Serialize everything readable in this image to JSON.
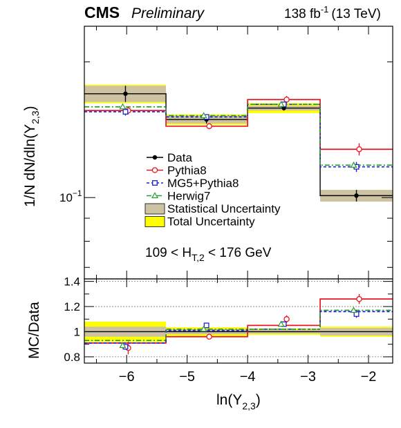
{
  "header": {
    "experiment": "CMS",
    "status": "Preliminary",
    "lumi_value": "138 fb",
    "lumi_exp": "-1",
    "lumi_energy": "(13 TeV)"
  },
  "colors": {
    "data": "#000000",
    "pythia8": "#e8141e",
    "mg5": "#1f1fd8",
    "herwig7": "#2a9a2a",
    "stat_band": "#cdc3a3",
    "total_band": "#ffff00"
  },
  "chart_data": [
    {
      "type": "line",
      "panel": "main",
      "ylabel_main": "1/N dN/dln(Y",
      "ylabel_sub": "2,3",
      "ylabel_close": ")",
      "yscale": "log",
      "xlim": [
        -6.7,
        -1.6
      ],
      "ylim": [
        0.066,
        0.24
      ],
      "ytick_base": "10",
      "ytick_exp": "−1",
      "ytick_value": 0.1,
      "annotation": {
        "main": "109 < H",
        "sub": "T,2",
        "tail": " < 176 GeV"
      },
      "bin_edges": [
        -6.7,
        -5.35,
        -4.0,
        -2.8,
        -1.6
      ],
      "bin_centers": [
        -6.02,
        -4.68,
        -3.4,
        -2.2
      ],
      "legend_position": "center",
      "legend": [
        {
          "key": "data",
          "label": "Data"
        },
        {
          "key": "pythia8",
          "label": "Pythia8"
        },
        {
          "key": "mg5",
          "label": "MG5+Pythia8"
        },
        {
          "key": "herwig7",
          "label": "Herwig7"
        },
        {
          "key": "stat",
          "label": "Statistical Uncertainty"
        },
        {
          "key": "total",
          "label": "Total Uncertainty"
        }
      ],
      "series": [
        {
          "key": "data",
          "name": "Data",
          "values": [
            0.17,
            0.149,
            0.158,
            0.101
          ],
          "errors": [
            0.007,
            0.003,
            0.002,
            0.003
          ],
          "total_errors": [
            0.008,
            0.004,
            0.004,
            0.003
          ]
        },
        {
          "key": "pythia8",
          "name": "Pythia8",
          "values": [
            0.156,
            0.144,
            0.165,
            0.128
          ],
          "errors": [
            0.003,
            0.002,
            0.003,
            0.004
          ]
        },
        {
          "key": "mg5",
          "name": "MG5+Pythia8",
          "values": [
            0.155,
            0.151,
            0.161,
            0.117
          ],
          "errors": [
            0.003,
            0.002,
            0.002,
            0.003
          ]
        },
        {
          "key": "herwig7",
          "name": "Herwig7",
          "values": [
            0.159,
            0.152,
            0.161,
            0.118
          ],
          "errors": [
            0.002,
            0.002,
            0.002,
            0.002
          ]
        }
      ]
    },
    {
      "type": "line",
      "panel": "ratio",
      "xlabel_main": "ln(Y",
      "xlabel_sub": "2,3",
      "xlabel_close": ")",
      "ylabel": "MC/Data",
      "xlim": [
        -6.7,
        -1.6
      ],
      "ylim": [
        0.75,
        1.42
      ],
      "yticks": [
        "0.8",
        "1",
        "1.2",
        "1.4"
      ],
      "xticks": [
        "−6",
        "−5",
        "−4",
        "−3",
        "−2"
      ],
      "gridlines_y": [
        0.8,
        1.2,
        1.4
      ],
      "bin_edges": [
        -6.7,
        -5.35,
        -4.0,
        -2.8,
        -1.6
      ],
      "bin_centers": [
        -6.02,
        -4.68,
        -3.4,
        -2.2
      ],
      "stat_band": [
        0.04,
        0.02,
        0.015,
        0.03
      ],
      "total_band": [
        0.08,
        0.035,
        0.025,
        0.04
      ],
      "series": [
        {
          "key": "pythia8",
          "name": "Pythia8",
          "values": [
            0.91,
            0.96,
            1.05,
            1.26
          ],
          "errors": [
            0.06,
            0.01,
            0.02,
            0.04
          ]
        },
        {
          "key": "mg5",
          "name": "MG5+Pythia8",
          "values": [
            0.91,
            1.01,
            1.02,
            1.16
          ],
          "errors": [
            0.02,
            0.01,
            0.01,
            0.03
          ]
        },
        {
          "key": "herwig7",
          "name": "Herwig7",
          "values": [
            0.93,
            1.02,
            1.02,
            1.17
          ],
          "errors": [
            0.02,
            0.01,
            0.01,
            0.02
          ]
        }
      ],
      "markers": [
        {
          "key": "pythia8",
          "values": [
            0.87,
            0.96,
            1.1,
            1.26
          ],
          "errors": [
            0.05,
            0.01,
            0.03,
            0.04
          ]
        },
        {
          "key": "mg5",
          "values": [
            0.88,
            1.05,
            1.06,
            1.14
          ],
          "errors": [
            0.02,
            0.01,
            0.01,
            0.03
          ]
        },
        {
          "key": "herwig7",
          "values": [
            0.89,
            1.02,
            1.06,
            1.17
          ],
          "errors": [
            0.02,
            0.01,
            0.01,
            0.02
          ]
        }
      ]
    }
  ]
}
